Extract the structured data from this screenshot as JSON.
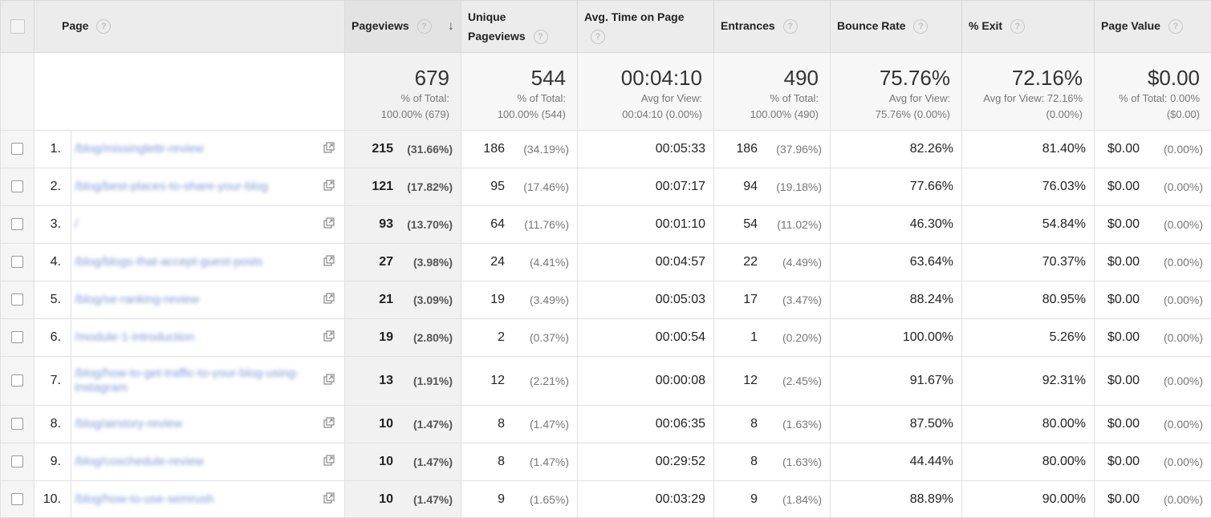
{
  "columns": {
    "page": "Page",
    "pageviews": "Pageviews",
    "unique_1": "Unique",
    "unique_2": "Pageviews",
    "avg_time": "Avg. Time on Page",
    "entrances": "Entrances",
    "bounce": "Bounce Rate",
    "exit": "% Exit",
    "value": "Page Value",
    "help": "?",
    "sort_arrow": "↓"
  },
  "totals": {
    "pageviews": {
      "value": "679",
      "l1": "% of Total:",
      "l2": "100.00% (679)"
    },
    "unique": {
      "value": "544",
      "l1": "% of Total:",
      "l2": "100.00% (544)"
    },
    "avg_time": {
      "value": "00:04:10",
      "l1": "Avg for View:",
      "l2": "00:04:10 (0.00%)"
    },
    "entrances": {
      "value": "490",
      "l1": "% of Total:",
      "l2": "100.00% (490)"
    },
    "bounce": {
      "value": "75.76%",
      "l1": "Avg for View:",
      "l2": "75.76% (0.00%)"
    },
    "exit": {
      "value": "72.16%",
      "l1": "Avg for View: 72.16%",
      "l2": "(0.00%)"
    },
    "value": {
      "value": "$0.00",
      "l1": "% of Total: 0.00%",
      "l2": "($0.00)"
    }
  },
  "rows": [
    {
      "idx": "1.",
      "page": "/blog/missinglettr-review",
      "pv": "215",
      "pv_pct": "(31.66%)",
      "upv": "186",
      "upv_pct": "(34.19%)",
      "time": "00:05:33",
      "ent": "186",
      "ent_pct": "(37.96%)",
      "bounce": "82.26%",
      "exit": "81.40%",
      "val": "$0.00",
      "val_pct": "(0.00%)"
    },
    {
      "idx": "2.",
      "page": "/blog/best-places-to-share-your-blog",
      "pv": "121",
      "pv_pct": "(17.82%)",
      "upv": "95",
      "upv_pct": "(17.46%)",
      "time": "00:07:17",
      "ent": "94",
      "ent_pct": "(19.18%)",
      "bounce": "77.66%",
      "exit": "76.03%",
      "val": "$0.00",
      "val_pct": "(0.00%)"
    },
    {
      "idx": "3.",
      "page": "/",
      "pv": "93",
      "pv_pct": "(13.70%)",
      "upv": "64",
      "upv_pct": "(11.76%)",
      "time": "00:01:10",
      "ent": "54",
      "ent_pct": "(11.02%)",
      "bounce": "46.30%",
      "exit": "54.84%",
      "val": "$0.00",
      "val_pct": "(0.00%)"
    },
    {
      "idx": "4.",
      "page": "/blog/blogs-that-accept-guest-posts",
      "pv": "27",
      "pv_pct": "(3.98%)",
      "upv": "24",
      "upv_pct": "(4.41%)",
      "time": "00:04:57",
      "ent": "22",
      "ent_pct": "(4.49%)",
      "bounce": "63.64%",
      "exit": "70.37%",
      "val": "$0.00",
      "val_pct": "(0.00%)"
    },
    {
      "idx": "5.",
      "page": "/blog/se-ranking-review",
      "pv": "21",
      "pv_pct": "(3.09%)",
      "upv": "19",
      "upv_pct": "(3.49%)",
      "time": "00:05:03",
      "ent": "17",
      "ent_pct": "(3.47%)",
      "bounce": "88.24%",
      "exit": "80.95%",
      "val": "$0.00",
      "val_pct": "(0.00%)"
    },
    {
      "idx": "6.",
      "page": "/module-1-introduction",
      "pv": "19",
      "pv_pct": "(2.80%)",
      "upv": "2",
      "upv_pct": "(0.37%)",
      "time": "00:00:54",
      "ent": "1",
      "ent_pct": "(0.20%)",
      "bounce": "100.00%",
      "exit": "5.26%",
      "val": "$0.00",
      "val_pct": "(0.00%)"
    },
    {
      "idx": "7.",
      "page": "/blog/how-to-get-traffic-to-your-blog-using-instagram",
      "pv": "13",
      "pv_pct": "(1.91%)",
      "upv": "12",
      "upv_pct": "(2.21%)",
      "time": "00:00:08",
      "ent": "12",
      "ent_pct": "(2.45%)",
      "bounce": "91.67%",
      "exit": "92.31%",
      "val": "$0.00",
      "val_pct": "(0.00%)"
    },
    {
      "idx": "8.",
      "page": "/blog/airstory-review",
      "pv": "10",
      "pv_pct": "(1.47%)",
      "upv": "8",
      "upv_pct": "(1.47%)",
      "time": "00:06:35",
      "ent": "8",
      "ent_pct": "(1.63%)",
      "bounce": "87.50%",
      "exit": "80.00%",
      "val": "$0.00",
      "val_pct": "(0.00%)"
    },
    {
      "idx": "9.",
      "page": "/blog/coschedule-review",
      "pv": "10",
      "pv_pct": "(1.47%)",
      "upv": "8",
      "upv_pct": "(1.47%)",
      "time": "00:29:52",
      "ent": "8",
      "ent_pct": "(1.63%)",
      "bounce": "44.44%",
      "exit": "80.00%",
      "val": "$0.00",
      "val_pct": "(0.00%)"
    },
    {
      "idx": "10.",
      "page": "/blog/how-to-use-semrush",
      "pv": "10",
      "pv_pct": "(1.47%)",
      "upv": "9",
      "upv_pct": "(1.65%)",
      "time": "00:03:29",
      "ent": "9",
      "ent_pct": "(1.84%)",
      "bounce": "88.89%",
      "exit": "90.00%",
      "val": "$0.00",
      "val_pct": "(0.00%)"
    }
  ]
}
